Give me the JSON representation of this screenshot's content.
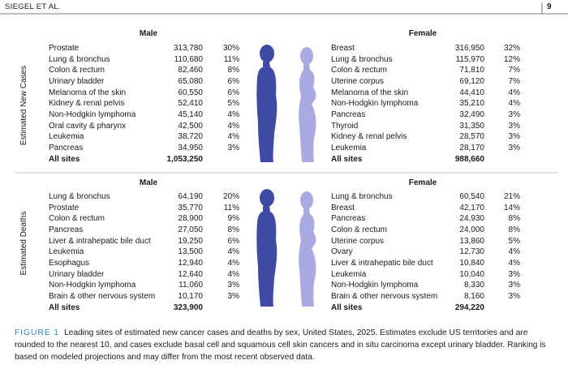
{
  "header": {
    "running_title": "SIEGEL ET AL.",
    "page": "9"
  },
  "panels": [
    {
      "label": "Estimated New Cases",
      "male": {
        "title": "Male",
        "rows": [
          [
            "Prostate",
            "313,780",
            "30%"
          ],
          [
            "Lung & bronchus",
            "110,680",
            "11%"
          ],
          [
            "Colon & rectum",
            "82,460",
            "8%"
          ],
          [
            "Urinary bladder",
            "65,080",
            "6%"
          ],
          [
            "Melanoma of the skin",
            "60,550",
            "6%"
          ],
          [
            "Kidney & renal pelvis",
            "52,410",
            "5%"
          ],
          [
            "Non-Hodgkin lymphoma",
            "45,140",
            "4%"
          ],
          [
            "Oral cavity & pharynx",
            "42,500",
            "4%"
          ],
          [
            "Leukemia",
            "38,720",
            "4%"
          ],
          [
            "Pancreas",
            "34,950",
            "3%"
          ]
        ],
        "total": [
          "All sites",
          "1,053,250"
        ]
      },
      "female": {
        "title": "Female",
        "rows": [
          [
            "Breast",
            "316,950",
            "32%"
          ],
          [
            "Lung & bronchus",
            "115,970",
            "12%"
          ],
          [
            "Colon & rectum",
            "71,810",
            "7%"
          ],
          [
            "Uterine corpus",
            "69,120",
            "7%"
          ],
          [
            "Melanoma of the skin",
            "44,410",
            "4%"
          ],
          [
            "Non-Hodgkin lymphoma",
            "35,210",
            "4%"
          ],
          [
            "Pancreas",
            "32,490",
            "3%"
          ],
          [
            "Thyroid",
            "31,350",
            "3%"
          ],
          [
            "Kidney & renal pelvis",
            "28,570",
            "3%"
          ],
          [
            "Leukemia",
            "28,170",
            "3%"
          ]
        ],
        "total": [
          "All sites",
          "988,660"
        ]
      }
    },
    {
      "label": "Estimated Deaths",
      "male": {
        "title": "Male",
        "rows": [
          [
            "Lung & bronchus",
            "64,190",
            "20%"
          ],
          [
            "Prostate",
            "35,770",
            "11%"
          ],
          [
            "Colon & rectum",
            "28,900",
            "9%"
          ],
          [
            "Pancreas",
            "27,050",
            "8%"
          ],
          [
            "Liver & intrahepatic bile duct",
            "19,250",
            "6%"
          ],
          [
            "Leukemia",
            "13,500",
            "4%"
          ],
          [
            "Esophagus",
            "12,940",
            "4%"
          ],
          [
            "Urinary bladder",
            "12,640",
            "4%"
          ],
          [
            "Non-Hodgkin lymphoma",
            "11,060",
            "3%"
          ],
          [
            "Brain & other nervous system",
            "10,170",
            "3%"
          ]
        ],
        "total": [
          "All sites",
          "323,900"
        ]
      },
      "female": {
        "title": "Female",
        "rows": [
          [
            "Lung & bronchus",
            "60,540",
            "21%"
          ],
          [
            "Breast",
            "42,170",
            "14%"
          ],
          [
            "Pancreas",
            "24,930",
            "8%"
          ],
          [
            "Colon & rectum",
            "24,000",
            "8%"
          ],
          [
            "Uterine corpus",
            "13,860",
            "5%"
          ],
          [
            "Ovary",
            "12,730",
            "4%"
          ],
          [
            "Liver & intrahepatic bile duct",
            "10,840",
            "4%"
          ],
          [
            "Leukemia",
            "10,040",
            "3%"
          ],
          [
            "Non-Hodgkin lymphoma",
            "8,330",
            "3%"
          ],
          [
            "Brain & other nervous system",
            "8,160",
            "3%"
          ]
        ],
        "total": [
          "All sites",
          "294,220"
        ]
      }
    }
  ],
  "caption": {
    "label": "FIGURE 1",
    "text": "Leading sites of estimated new cancer cases and deaths by sex, United States, 2025. Estimates exclude US territories and are rounded to the nearest 10, and cases exclude basal cell and squamous cell skin cancers and in situ carcinoma except urinary bladder. Ranking is based on modeled projections and may differ from the most recent observed data."
  }
}
